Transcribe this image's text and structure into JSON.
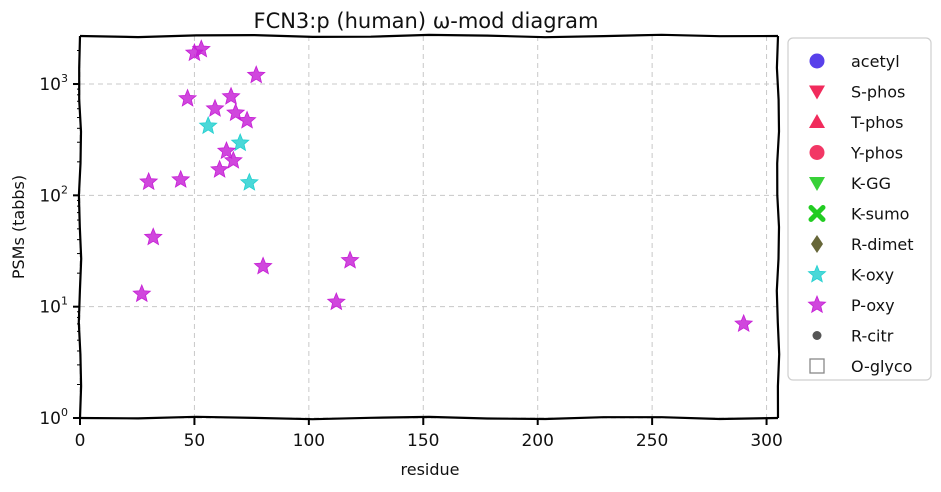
{
  "chart_data": {
    "type": "scatter",
    "title": "FCN3:p (human) ω-mod diagram",
    "xlabel": "residue",
    "ylabel": "PSMs (tabbs)",
    "xlim": [
      0,
      305
    ],
    "ylim": [
      1,
      2700
    ],
    "yscale": "log",
    "grid": true,
    "legend_position": "right-outside",
    "x_ticks": [
      {
        "value": 0,
        "label": "0"
      },
      {
        "value": 50,
        "label": "50"
      },
      {
        "value": 100,
        "label": "100"
      },
      {
        "value": 150,
        "label": "150"
      },
      {
        "value": 200,
        "label": "200"
      },
      {
        "value": 250,
        "label": "250"
      },
      {
        "value": 300,
        "label": "300"
      }
    ],
    "y_ticks": [
      {
        "value": 1,
        "base": "10",
        "exp": "0"
      },
      {
        "value": 10,
        "base": "10",
        "exp": "1"
      },
      {
        "value": 100,
        "base": "10",
        "exp": "2"
      },
      {
        "value": 1000,
        "base": "10",
        "exp": "3"
      }
    ],
    "series": [
      {
        "name": "acetyl",
        "marker": "circle",
        "color": "#3b1fe6",
        "points": []
      },
      {
        "name": "S-phos",
        "marker": "triangle-down",
        "color": "#f0144a",
        "points": []
      },
      {
        "name": "T-phos",
        "marker": "triangle-up",
        "color": "#f0144a",
        "points": []
      },
      {
        "name": "Y-phos",
        "marker": "circle",
        "color": "#f0144a",
        "points": []
      },
      {
        "name": "K-GG",
        "marker": "triangle-down",
        "color": "#22cc22",
        "points": []
      },
      {
        "name": "K-sumo",
        "marker": "x",
        "color": "#22cc22",
        "points": []
      },
      {
        "name": "R-dimet",
        "marker": "diamond",
        "color": "#555522",
        "points": []
      },
      {
        "name": "K-oxy",
        "marker": "star",
        "color": "#22d0d0",
        "points": [
          {
            "x": 56,
            "y": 420
          },
          {
            "x": 70,
            "y": 295
          },
          {
            "x": 74,
            "y": 130
          }
        ]
      },
      {
        "name": "P-oxy",
        "marker": "star",
        "color": "#c61fd6",
        "points": [
          {
            "x": 50,
            "y": 1900
          },
          {
            "x": 53,
            "y": 2050
          },
          {
            "x": 77,
            "y": 1200
          },
          {
            "x": 47,
            "y": 740
          },
          {
            "x": 66,
            "y": 770
          },
          {
            "x": 59,
            "y": 600
          },
          {
            "x": 68,
            "y": 550
          },
          {
            "x": 73,
            "y": 470
          },
          {
            "x": 64,
            "y": 250
          },
          {
            "x": 67,
            "y": 205
          },
          {
            "x": 61,
            "y": 170
          },
          {
            "x": 30,
            "y": 132
          },
          {
            "x": 44,
            "y": 138
          },
          {
            "x": 32,
            "y": 42
          },
          {
            "x": 80,
            "y": 23
          },
          {
            "x": 118,
            "y": 26
          },
          {
            "x": 27,
            "y": 13
          },
          {
            "x": 112,
            "y": 11
          },
          {
            "x": 290,
            "y": 7
          }
        ]
      },
      {
        "name": "R-citr",
        "marker": "circle-small",
        "color": "#555555",
        "points": []
      },
      {
        "name": "O-glyco",
        "marker": "square-open",
        "color": "#888888",
        "points": []
      }
    ]
  }
}
